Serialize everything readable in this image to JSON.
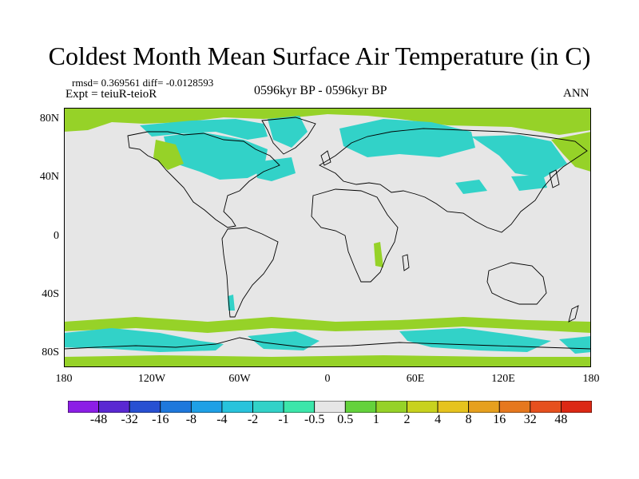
{
  "title": "Coldest Month Mean Surface Air Temperature (in C)",
  "stats_line": "rmsd= 0.369561 diff= -0.0128593",
  "experiment_line": "Expt = teiuR-teioR",
  "period_line": "0596kyr BP - 0596kyr BP",
  "season": "ANN",
  "lat_labels": [
    "80N",
    "40N",
    "0",
    "40S",
    "80S"
  ],
  "lon_labels": [
    "180",
    "120W",
    "60W",
    "0",
    "60E",
    "120E",
    "180"
  ],
  "colorbar": {
    "colors": [
      "#8c1ee6",
      "#5a28d2",
      "#2850d2",
      "#1e78dc",
      "#1ea0e6",
      "#28c3dc",
      "#32d2c8",
      "#3ce6aa",
      "#e6e6e6",
      "#64d23c",
      "#96d228",
      "#c8d21e",
      "#e6c31e",
      "#e6a01e",
      "#e6781e",
      "#e6501e",
      "#dc2814"
    ],
    "labels": [
      "-48",
      "-32",
      "-16",
      "-8",
      "-4",
      "-2",
      "-1",
      "-0.5",
      "0.5",
      "1",
      "2",
      "4",
      "8",
      "16",
      "32",
      "48"
    ]
  },
  "map_colors": {
    "background": "#e6e6e6",
    "cool": "#32d2c8",
    "warm": "#96d228",
    "warm_dark": "#64d23c",
    "hot": "#c8d21e"
  }
}
